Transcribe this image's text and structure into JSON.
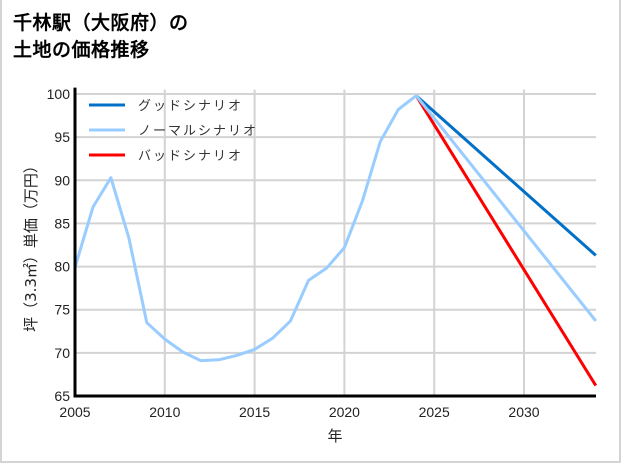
{
  "title": {
    "line1": "千林駅（大阪府）の",
    "line2": "土地の価格推移"
  },
  "chart_data": {
    "type": "line",
    "title": "千林駅（大阪府）の土地の価格推移",
    "xlabel": "年",
    "ylabel": "坪（3.3㎡）単価（万円）",
    "xlim": [
      2005,
      2034
    ],
    "ylim": [
      65,
      100.5
    ],
    "xticks": [
      2005,
      2010,
      2015,
      2020,
      2025,
      2030
    ],
    "yticks": [
      65,
      70,
      75,
      80,
      85,
      90,
      95,
      100
    ],
    "grid": true,
    "legend_position": "upper left",
    "historical": {
      "x": [
        2005,
        2006,
        2007,
        2008,
        2009,
        2010,
        2011,
        2012,
        2013,
        2014,
        2015,
        2016,
        2017,
        2018,
        2019,
        2020,
        2021,
        2022,
        2023,
        2024
      ],
      "values": [
        79.9,
        86.9,
        90.3,
        83.3,
        73.5,
        71.6,
        70.1,
        69.1,
        69.2,
        69.7,
        70.4,
        71.7,
        73.7,
        78.4,
        79.8,
        82.2,
        87.6,
        94.5,
        98.2,
        99.8
      ]
    },
    "series": [
      {
        "name": "グッドシナリオ",
        "color": "#0070c8",
        "x": [
          2024,
          2034
        ],
        "values": [
          99.8,
          81.3
        ]
      },
      {
        "name": "ノーマルシナリオ",
        "color": "#99ccff",
        "x": [
          2024,
          2034
        ],
        "values": [
          99.8,
          73.7
        ]
      },
      {
        "name": "バッドシナリオ",
        "color": "#ff0000",
        "x": [
          2024,
          2034
        ],
        "values": [
          99.8,
          66.2
        ]
      }
    ]
  }
}
